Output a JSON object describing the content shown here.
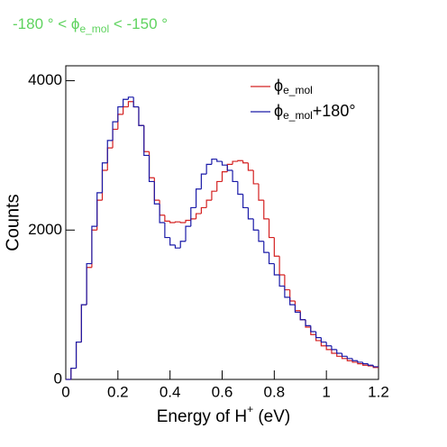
{
  "chart_data": {
    "type": "histogram",
    "title": [
      "-180 ° < ϕ",
      "e_mol",
      " < -150 °"
    ],
    "xlabel": [
      "Energy of H",
      "+",
      " (eV)"
    ],
    "ylabel": "Counts",
    "xlim": [
      0,
      1.2
    ],
    "ylim": [
      0,
      4200
    ],
    "xticks": [
      0,
      0.2,
      0.4,
      0.6,
      0.8,
      1,
      1.2
    ],
    "yticks": [
      0,
      2000,
      4000
    ],
    "legend": "top-right",
    "bins": [
      0,
      0.02,
      0.04,
      0.06,
      0.08,
      0.1,
      0.12,
      0.14,
      0.16,
      0.18,
      0.2,
      0.22,
      0.24,
      0.26,
      0.28,
      0.3,
      0.32,
      0.34,
      0.36,
      0.38,
      0.4,
      0.42,
      0.44,
      0.46,
      0.48,
      0.5,
      0.52,
      0.54,
      0.56,
      0.58,
      0.6,
      0.62,
      0.64,
      0.66,
      0.68,
      0.7,
      0.72,
      0.74,
      0.76,
      0.78,
      0.8,
      0.82,
      0.84,
      0.86,
      0.88,
      0.9,
      0.92,
      0.94,
      0.96,
      0.98,
      1,
      1.02,
      1.04,
      1.06,
      1.08,
      1.1,
      1.12,
      1.14,
      1.16,
      1.18,
      1.2
    ],
    "series": [
      {
        "name": [
          "ϕ",
          "e_mol"
        ],
        "color": "#d42020",
        "values": [
          0,
          150,
          500,
          1000,
          1500,
          2000,
          2400,
          2800,
          3100,
          3350,
          3550,
          3650,
          3720,
          3650,
          3400,
          3050,
          2700,
          2400,
          2200,
          2120,
          2100,
          2110,
          2100,
          2130,
          2150,
          2220,
          2300,
          2400,
          2520,
          2650,
          2780,
          2880,
          2920,
          2930,
          2900,
          2800,
          2620,
          2400,
          2150,
          1900,
          1650,
          1400,
          1200,
          1050,
          920,
          800,
          700,
          600,
          520,
          450,
          400,
          350,
          310,
          280,
          250,
          230,
          210,
          190,
          180,
          160
        ]
      },
      {
        "name": [
          "ϕ",
          "e_mol",
          "+180°"
        ],
        "color": "#1a1aa8",
        "values": [
          0,
          150,
          500,
          1000,
          1550,
          2050,
          2500,
          2900,
          3200,
          3450,
          3650,
          3750,
          3780,
          3650,
          3400,
          3000,
          2650,
          2350,
          2100,
          1900,
          1800,
          1760,
          1850,
          2050,
          2300,
          2550,
          2750,
          2880,
          2950,
          2920,
          2870,
          2800,
          2650,
          2480,
          2300,
          2150,
          2000,
          1850,
          1700,
          1550,
          1400,
          1250,
          1100,
          1000,
          900,
          800,
          720,
          640,
          560,
          500,
          450,
          400,
          350,
          310,
          280,
          250,
          230,
          210,
          190,
          170
        ]
      }
    ]
  }
}
